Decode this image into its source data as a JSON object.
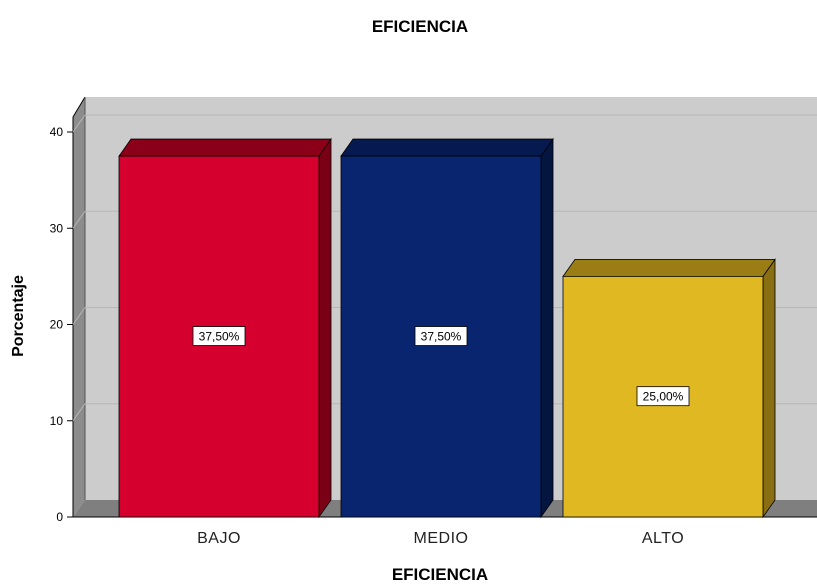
{
  "chart_data": {
    "type": "bar",
    "title": "EFICIENCIA",
    "xlabel": "EFICIENCIA",
    "ylabel": "Porcentaje",
    "categories": [
      "BAJO",
      "MEDIO",
      "ALTO"
    ],
    "values": [
      37.5,
      37.5,
      25.0
    ],
    "data_labels": [
      "37,50%",
      "37,50%",
      "25,00%"
    ],
    "yticks": [
      "0",
      "10",
      "20",
      "30",
      "40"
    ],
    "ylim": [
      0,
      42
    ],
    "grid": true,
    "bar_colors": [
      "#d6002f",
      "#0a2570",
      "#e0b822"
    ],
    "bar_top_colors": [
      "#8b0018",
      "#061a4f",
      "#9a7d15"
    ],
    "bar_side_colors": [
      "#7a0016",
      "#04153f",
      "#8a6e12"
    ],
    "wall_color": "#cccccc",
    "floor_color": "#7f7f7f"
  }
}
